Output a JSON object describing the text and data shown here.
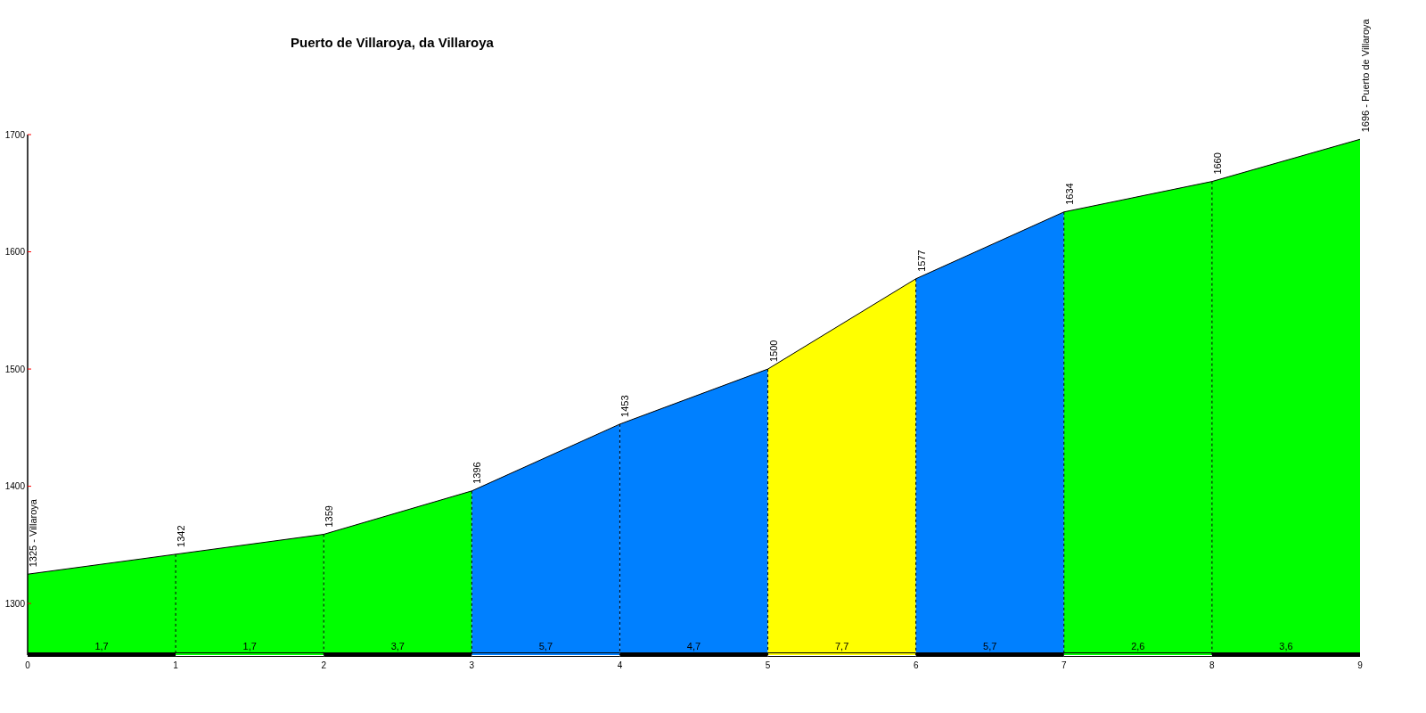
{
  "chart_data": {
    "type": "area",
    "title": "Puerto de Villaroya, da Villaroya",
    "series": [
      {
        "color": "#00ff00",
        "x": [
          0,
          1
        ],
        "values": [
          1325,
          1342
        ]
      },
      {
        "color": "#00ff00",
        "x": [
          1,
          2
        ],
        "values": [
          1342,
          1359
        ]
      },
      {
        "color": "#00ff00",
        "x": [
          2,
          3
        ],
        "values": [
          1359,
          1396
        ]
      },
      {
        "color": "#0080ff",
        "x": [
          3,
          4
        ],
        "values": [
          1396,
          1453
        ]
      },
      {
        "color": "#0080ff",
        "x": [
          4,
          5
        ],
        "values": [
          1453,
          1500
        ]
      },
      {
        "color": "#ffff00",
        "x": [
          5,
          6
        ],
        "values": [
          1500,
          1577
        ]
      },
      {
        "color": "#0080ff",
        "x": [
          6,
          7
        ],
        "values": [
          1577,
          1634
        ]
      },
      {
        "color": "#00ff00",
        "x": [
          7,
          8
        ],
        "values": [
          1634,
          1660
        ]
      },
      {
        "color": "#00ff00",
        "x": [
          8,
          9
        ],
        "values": [
          1660,
          1696
        ]
      }
    ],
    "xlim": [
      0,
      9
    ],
    "xticks": [
      0,
      1,
      2,
      3,
      4,
      5,
      6,
      7,
      8,
      9
    ],
    "grid": "x",
    "ylim": [
      1256,
      1700
    ],
    "yticks": [
      1300,
      1400,
      1500,
      1600,
      1700
    ],
    "annotations": [
      {
        "text": "1325 - Villaroya",
        "x": 0,
        "y": 1325
      },
      {
        "text": "1342",
        "x": 1,
        "y": 1342
      },
      {
        "text": "1359",
        "x": 2,
        "y": 1359
      },
      {
        "text": "1396",
        "x": 3,
        "y": 1396
      },
      {
        "text": "1453",
        "x": 4,
        "y": 1453
      },
      {
        "text": "1500",
        "x": 5,
        "y": 1500
      },
      {
        "text": "1577",
        "x": 6,
        "y": 1577
      },
      {
        "text": "1634",
        "x": 7,
        "y": 1634
      },
      {
        "text": "1660",
        "x": 8,
        "y": 1660
      },
      {
        "text": "1696 - Puerto de Villaroya",
        "x": 9,
        "y": 1696
      },
      "1,7",
      "1,7",
      "3,7",
      "5,7",
      "4,7",
      "7,7",
      "5,7",
      "2,6",
      "3,6"
    ]
  }
}
